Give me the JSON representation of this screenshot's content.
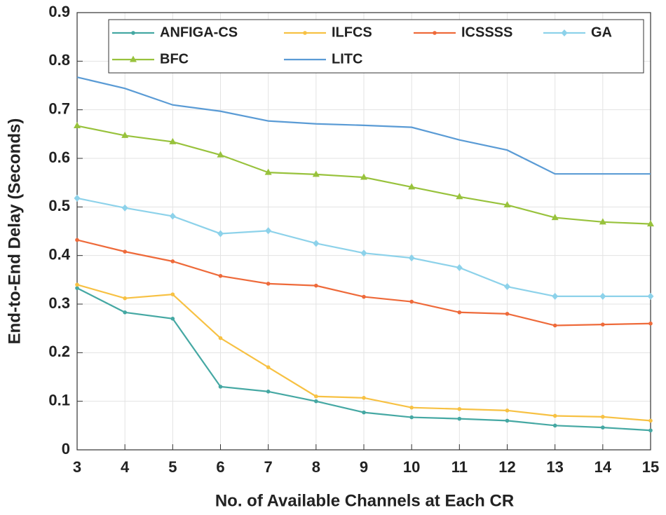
{
  "chart_data": {
    "type": "line",
    "xlabel": "No. of Available Channels at Each CR",
    "ylabel": "End-to-End Delay (Seconds)",
    "x": [
      3,
      4,
      5,
      6,
      7,
      8,
      9,
      10,
      11,
      12,
      13,
      14,
      15
    ],
    "xlim": [
      3,
      15
    ],
    "xticks": [
      3,
      4,
      5,
      6,
      7,
      8,
      9,
      10,
      11,
      12,
      13,
      14,
      15
    ],
    "ylim": [
      0,
      0.9
    ],
    "yticks": [
      0,
      0.1,
      0.2,
      0.3,
      0.4,
      0.5,
      0.6,
      0.7,
      0.8,
      0.9
    ],
    "grid": true,
    "legend_loc": "top",
    "series": [
      {
        "name": "ANFIGA-CS",
        "color": "#45a8a3",
        "marker": "dot",
        "values": [
          0.333,
          0.283,
          0.27,
          0.13,
          0.12,
          0.1,
          0.077,
          0.067,
          0.064,
          0.06,
          0.05,
          0.046,
          0.04
        ]
      },
      {
        "name": "ILFCS",
        "color": "#f7c143",
        "marker": "dot",
        "values": [
          0.34,
          0.312,
          0.32,
          0.23,
          0.17,
          0.11,
          0.107,
          0.087,
          0.084,
          0.081,
          0.07,
          0.068,
          0.06
        ]
      },
      {
        "name": "ICSSSS",
        "color": "#ee6a3a",
        "marker": "dot",
        "values": [
          0.432,
          0.408,
          0.388,
          0.358,
          0.342,
          0.338,
          0.315,
          0.305,
          0.283,
          0.28,
          0.256,
          0.258,
          0.26
        ]
      },
      {
        "name": "GA",
        "color": "#8dd2ea",
        "marker": "diamond",
        "values": [
          0.518,
          0.498,
          0.481,
          0.445,
          0.451,
          0.425,
          0.405,
          0.395,
          0.375,
          0.336,
          0.316,
          0.316,
          0.316
        ]
      },
      {
        "name": "BFC",
        "color": "#98c23c",
        "marker": "triangle",
        "values": [
          0.667,
          0.647,
          0.634,
          0.607,
          0.571,
          0.567,
          0.561,
          0.541,
          0.521,
          0.504,
          0.478,
          0.469,
          0.465
        ]
      },
      {
        "name": "LITC",
        "color": "#5a9bd5",
        "marker": "none",
        "values": [
          0.767,
          0.744,
          0.71,
          0.697,
          0.677,
          0.671,
          0.668,
          0.664,
          0.638,
          0.617,
          0.568,
          0.568,
          0.568
        ]
      }
    ]
  }
}
